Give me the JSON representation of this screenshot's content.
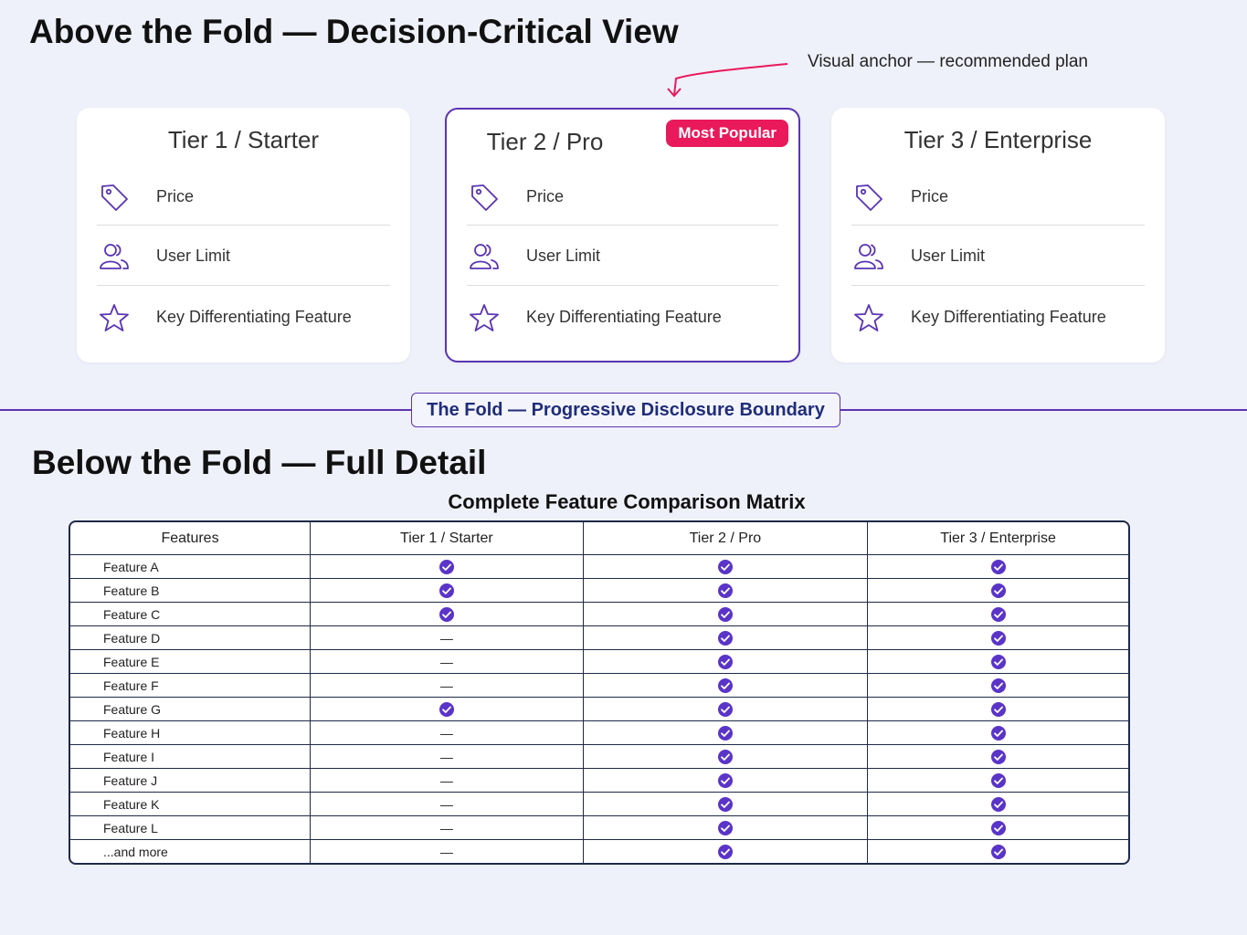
{
  "header": {
    "title": "Above the Fold — Decision-Critical View",
    "annotation": "Visual anchor — recommended plan"
  },
  "tiers": [
    {
      "name": "Tier 1 / Starter",
      "rows": [
        "Price",
        "User Limit",
        "Key Differentiating Feature"
      ]
    },
    {
      "name": "Tier 2 / Pro",
      "badge": "Most Popular",
      "highlight": true,
      "rows": [
        "Price",
        "User Limit",
        "Key Differentiating Feature"
      ]
    },
    {
      "name": "Tier 3 / Enterprise",
      "rows": [
        "Price",
        "User Limit",
        "Key Differentiating Feature"
      ]
    }
  ],
  "fold": {
    "label": "The Fold — Progressive Disclosure Boundary"
  },
  "below": {
    "title": "Below the Fold — Full Detail"
  },
  "table": {
    "title": "Complete Feature Comparison Matrix",
    "columns": [
      "Features",
      "Tier 1 / Starter",
      "Tier 2 / Pro",
      "Tier 3 / Enterprise"
    ],
    "rows": [
      [
        "Feature A",
        true,
        true,
        true
      ],
      [
        "Feature B",
        true,
        true,
        true
      ],
      [
        "Feature C",
        true,
        true,
        true
      ],
      [
        "Feature D",
        "—",
        true,
        true
      ],
      [
        "Feature E",
        "—",
        true,
        true
      ],
      [
        "Feature F",
        "—",
        true,
        true
      ],
      [
        "Feature G",
        true,
        true,
        true
      ],
      [
        "Feature H",
        "—",
        true,
        true
      ],
      [
        "Feature I",
        "—",
        true,
        true
      ],
      [
        "Feature J",
        "—",
        true,
        true
      ],
      [
        "Feature K",
        "—",
        true,
        true
      ],
      [
        "Feature L",
        "—",
        true,
        true
      ],
      [
        "...and more",
        "—",
        true,
        true
      ]
    ]
  }
}
